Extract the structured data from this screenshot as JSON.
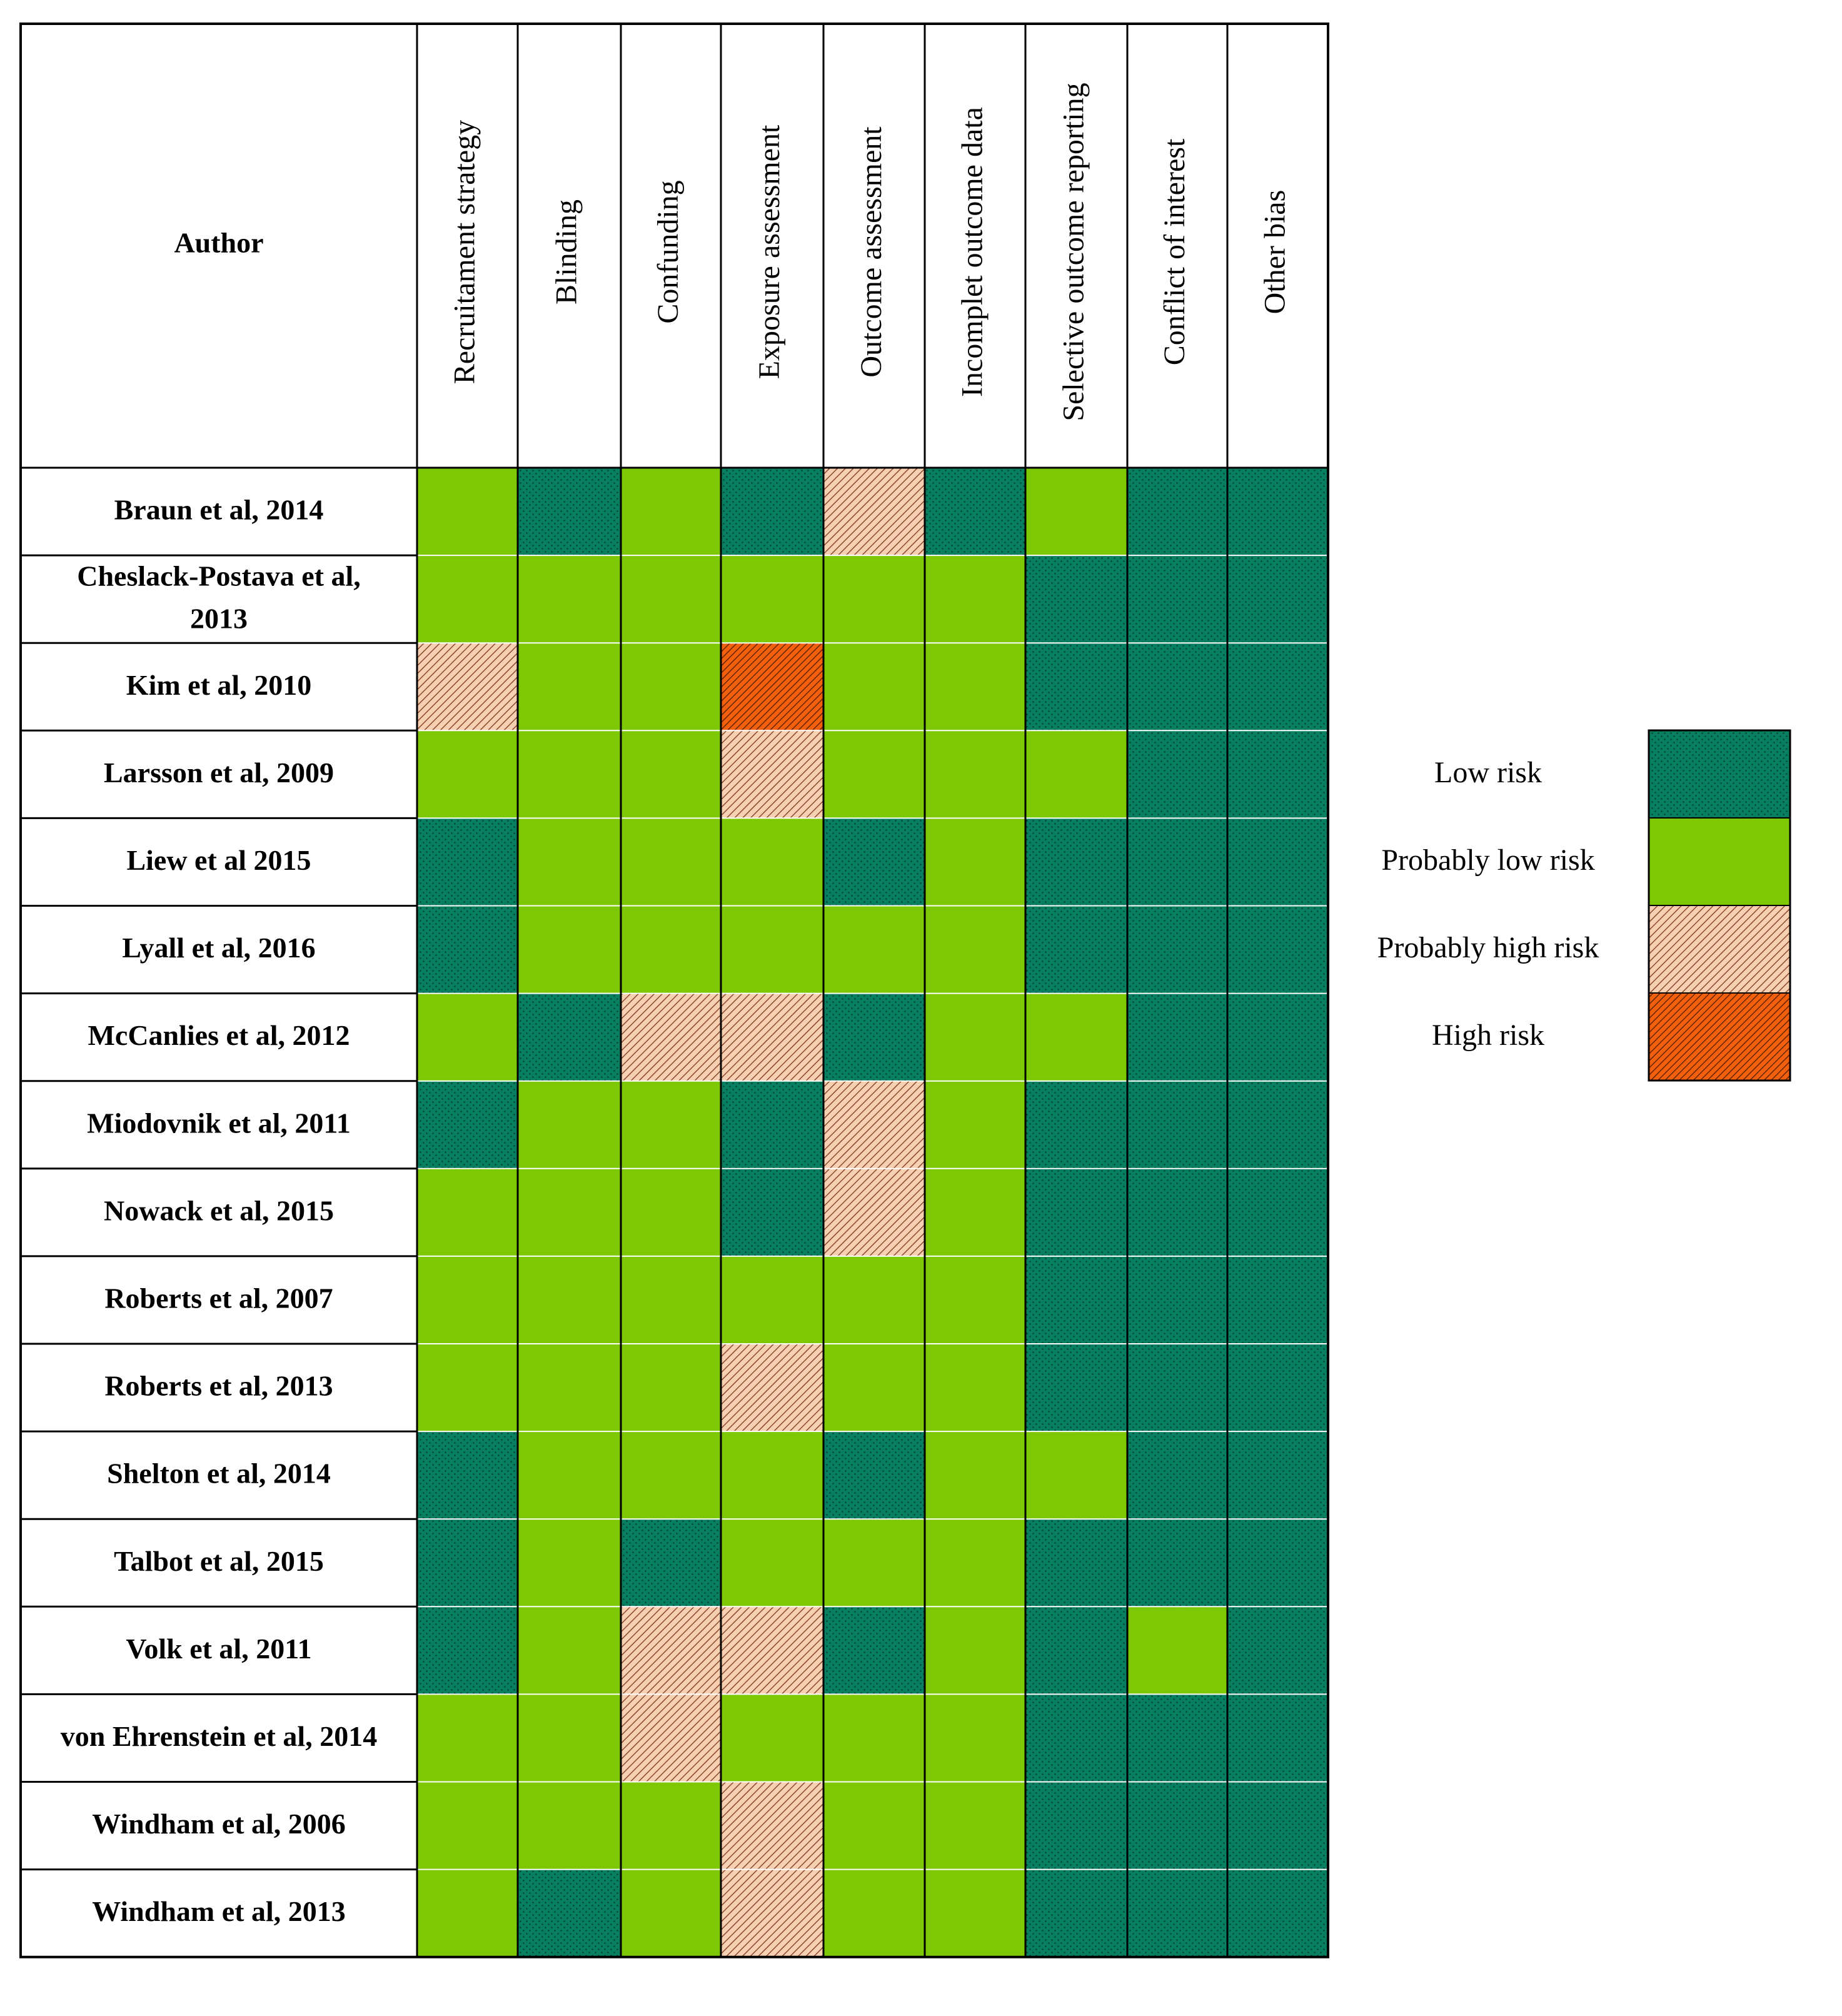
{
  "chart_data": {
    "type": "heatmap",
    "row_header": "Author",
    "columns": [
      "Recruitament strategy",
      "Blinding",
      "Confunding",
      "Exposure assessment",
      "Outcome assessment",
      "Incomplet outcome data",
      "Selective outcome reporting",
      "Conflict of interest",
      "Other bias"
    ],
    "rows": [
      {
        "author": [
          "Braun et al, 2014"
        ],
        "ratings": [
          "PL",
          "L",
          "PL",
          "L",
          "PH",
          "L",
          "PL",
          "L",
          "L"
        ]
      },
      {
        "author": [
          "Cheslack-Postava et al,",
          "2013"
        ],
        "ratings": [
          "PL",
          "PL",
          "PL",
          "PL",
          "PL",
          "PL",
          "L",
          "L",
          "L"
        ]
      },
      {
        "author": [
          "Kim et al, 2010"
        ],
        "ratings": [
          "PH",
          "PL",
          "PL",
          "H",
          "PL",
          "PL",
          "L",
          "L",
          "L"
        ]
      },
      {
        "author": [
          "Larsson et al, 2009"
        ],
        "ratings": [
          "PL",
          "PL",
          "PL",
          "PH",
          "PL",
          "PL",
          "PL",
          "L",
          "L"
        ]
      },
      {
        "author": [
          "Liew et al 2015"
        ],
        "ratings": [
          "L",
          "PL",
          "PL",
          "PL",
          "L",
          "PL",
          "L",
          "L",
          "L"
        ]
      },
      {
        "author": [
          "Lyall et al, 2016"
        ],
        "ratings": [
          "L",
          "PL",
          "PL",
          "PL",
          "PL",
          "PL",
          "L",
          "L",
          "L"
        ]
      },
      {
        "author": [
          "McCanlies et al, 2012"
        ],
        "ratings": [
          "PL",
          "L",
          "PH",
          "PH",
          "L",
          "PL",
          "PL",
          "L",
          "L"
        ]
      },
      {
        "author": [
          "Miodovnik et al, 2011"
        ],
        "ratings": [
          "L",
          "PL",
          "PL",
          "L",
          "PH",
          "PL",
          "L",
          "L",
          "L"
        ]
      },
      {
        "author": [
          "Nowack et al, 2015"
        ],
        "ratings": [
          "PL",
          "PL",
          "PL",
          "L",
          "PH",
          "PL",
          "L",
          "L",
          "L"
        ]
      },
      {
        "author": [
          "Roberts et al, 2007"
        ],
        "ratings": [
          "PL",
          "PL",
          "PL",
          "PL",
          "PL",
          "PL",
          "L",
          "L",
          "L"
        ]
      },
      {
        "author": [
          "Roberts et al, 2013"
        ],
        "ratings": [
          "PL",
          "PL",
          "PL",
          "PH",
          "PL",
          "PL",
          "L",
          "L",
          "L"
        ]
      },
      {
        "author": [
          "Shelton et al, 2014"
        ],
        "ratings": [
          "L",
          "PL",
          "PL",
          "PL",
          "L",
          "PL",
          "PL",
          "L",
          "L"
        ]
      },
      {
        "author": [
          "Talbot et al, 2015"
        ],
        "ratings": [
          "L",
          "PL",
          "L",
          "PL",
          "PL",
          "PL",
          "L",
          "L",
          "L"
        ]
      },
      {
        "author": [
          "Volk et al, 2011"
        ],
        "ratings": [
          "L",
          "PL",
          "PH",
          "PH",
          "L",
          "PL",
          "L",
          "PL",
          "L"
        ]
      },
      {
        "author": [
          "von Ehrenstein et al, 2014"
        ],
        "ratings": [
          "PL",
          "PL",
          "PH",
          "PL",
          "PL",
          "PL",
          "L",
          "L",
          "L"
        ]
      },
      {
        "author": [
          "Windham et al, 2006"
        ],
        "ratings": [
          "PL",
          "PL",
          "PL",
          "PH",
          "PL",
          "PL",
          "L",
          "L",
          "L"
        ]
      },
      {
        "author": [
          "Windham et al, 2013"
        ],
        "ratings": [
          "PL",
          "L",
          "PL",
          "PH",
          "PL",
          "PL",
          "L",
          "L",
          "L"
        ]
      }
    ],
    "legend": [
      {
        "key": "L",
        "label": "Low risk"
      },
      {
        "key": "PL",
        "label": "Probably low risk"
      },
      {
        "key": "PH",
        "label": "Probably high risk"
      },
      {
        "key": "H",
        "label": "High risk"
      }
    ],
    "legend_placement": "right",
    "colors": {
      "L": "#077F60",
      "L_dots": "#03321f",
      "PL": "#7DC803",
      "PH": "#F7CFB2",
      "PH_hatch": "#8a4a2a",
      "H": "#F2600D",
      "H_hatch": "#4a1a00"
    }
  }
}
